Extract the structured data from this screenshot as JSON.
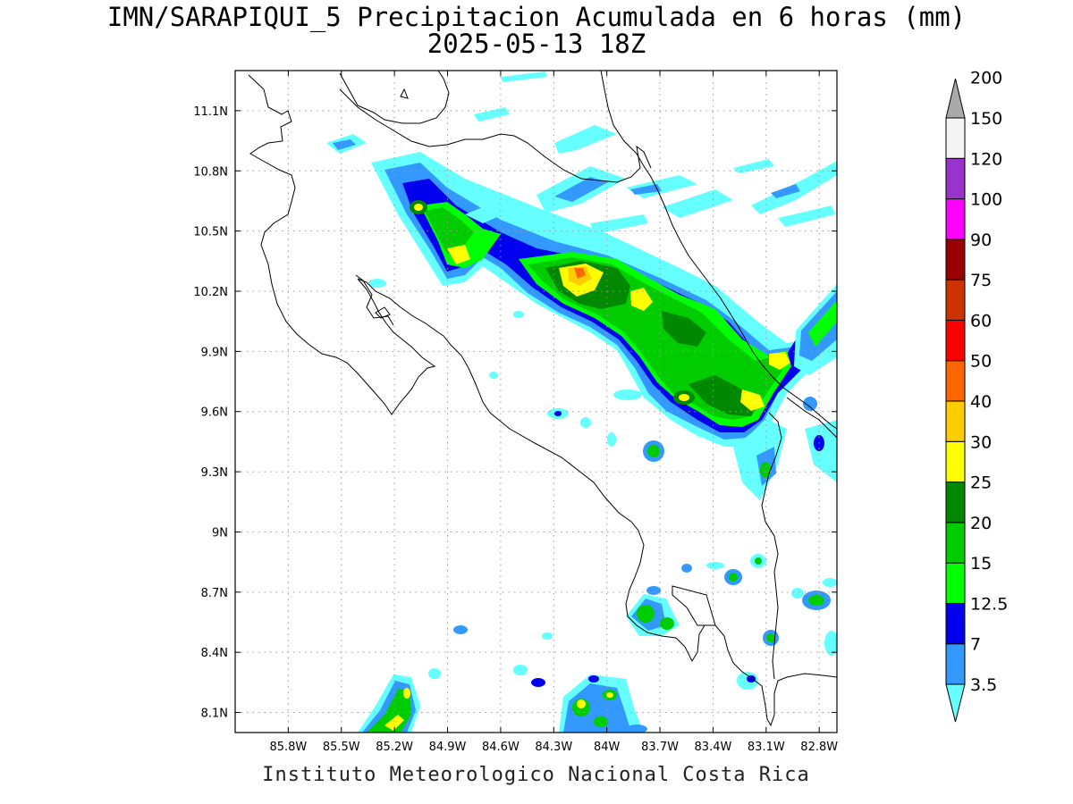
{
  "title": {
    "line1": "IMN/SARAPIQUI_5 Precipitacion Acumulada en 6 horas (mm)",
    "line2": "2025-05-13 18Z"
  },
  "footer": "Instituto Meteorologico Nacional Costa Rica",
  "map": {
    "lon_range": [
      -86.1,
      -82.7
    ],
    "lat_range": [
      8.0,
      11.3
    ],
    "lon_ticks": [
      {
        "v": -85.8,
        "label": "85.8W"
      },
      {
        "v": -85.5,
        "label": "85.5W"
      },
      {
        "v": -85.2,
        "label": "85.2W"
      },
      {
        "v": -84.9,
        "label": "84.9W"
      },
      {
        "v": -84.6,
        "label": "84.6W"
      },
      {
        "v": -84.3,
        "label": "84.3W"
      },
      {
        "v": -84.0,
        "label": "84W"
      },
      {
        "v": -83.7,
        "label": "83.7W"
      },
      {
        "v": -83.4,
        "label": "83.4W"
      },
      {
        "v": -83.1,
        "label": "83.1W"
      },
      {
        "v": -82.8,
        "label": "82.8W"
      }
    ],
    "lat_ticks": [
      {
        "v": 11.1,
        "label": "11.1N"
      },
      {
        "v": 10.8,
        "label": "10.8N"
      },
      {
        "v": 10.5,
        "label": "10.5N"
      },
      {
        "v": 10.2,
        "label": "10.2N"
      },
      {
        "v": 9.9,
        "label": "9.9N"
      },
      {
        "v": 9.6,
        "label": "9.6N"
      },
      {
        "v": 9.3,
        "label": "9.3N"
      },
      {
        "v": 9.0,
        "label": "9N"
      },
      {
        "v": 8.7,
        "label": "8.7N"
      },
      {
        "v": 8.4,
        "label": "8.4N"
      },
      {
        "v": 8.1,
        "label": "8.1N"
      }
    ]
  },
  "colorbar": {
    "levels": [
      "3.5",
      "7",
      "12.5",
      "15",
      "20",
      "25",
      "30",
      "40",
      "50",
      "60",
      "75",
      "90",
      "100",
      "120",
      "150",
      "200"
    ],
    "colors": [
      "#66ffff",
      "#3399ff",
      "#0000ee",
      "#00ff00",
      "#00cc00",
      "#008800",
      "#ffff00",
      "#ffcc00",
      "#ff6600",
      "#ff0000",
      "#cc3300",
      "#990000",
      "#ff00ff",
      "#9933cc",
      "#f5f5f5",
      "#aaaaaa"
    ]
  }
}
